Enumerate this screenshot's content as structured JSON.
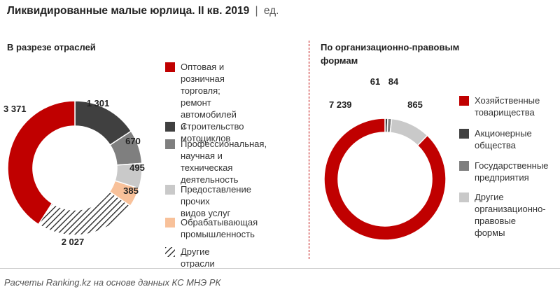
{
  "header": {
    "title": "Ликвидированные малые юрлица. II кв. 2019",
    "separator": "|",
    "unit": "ед."
  },
  "colors": {
    "red": "#c00000",
    "dark_gray": "#404040",
    "mid_gray": "#7f7f7f",
    "light_gray": "#c9c9c9",
    "orange": "#f8c19a",
    "divider": "#c00000"
  },
  "chart_data": [
    {
      "type": "pie",
      "variant": "donut",
      "title": "В разрезе отраслей",
      "categories": [
        "Оптовая и розничная торговля; ремонт автомобилей и мотоциклов",
        "Строительство",
        "Профессиональная, научная и техническая деятельность",
        "Предоставление прочих видов услуг",
        "Обрабатывающая промышленность",
        "Другие отрасли"
      ],
      "legend_lines": [
        [
          "Оптовая и розничная",
          "торговля; ремонт",
          "автомобилей и",
          "мотоциклов"
        ],
        [
          "Строительство"
        ],
        [
          "Профессиональная,",
          "научная и техническая",
          "деятельность"
        ],
        [
          "Предоставление прочих",
          "видов услуг"
        ],
        [
          "Обрабатывающая",
          "промышленность"
        ],
        [
          "Другие отрасли"
        ]
      ],
      "values": [
        3371,
        1301,
        670,
        495,
        385,
        2027
      ],
      "labels": [
        "3 371",
        "1 301",
        "670",
        "495",
        "385",
        "2 027"
      ],
      "fills": [
        "#c00000",
        "#404040",
        "#7f7f7f",
        "#c9c9c9",
        "#f8c19a",
        "hatch"
      ],
      "slice_order": [
        1,
        2,
        3,
        4,
        5,
        0
      ],
      "legend_position": "right"
    },
    {
      "type": "pie",
      "variant": "donut",
      "title": "По организационно-правовым формам",
      "categories": [
        "Хозяйственные товарищества",
        "Акционерные общества",
        "Государственные предприятия",
        "Другие организационно-правовые формы"
      ],
      "legend_lines": [
        [
          "Хозяйственные",
          "товарищества"
        ],
        [
          "Акционерные",
          "общества"
        ],
        [
          "Государственные",
          "предприятия"
        ],
        [
          "Другие",
          "организационно-",
          "правовые формы"
        ]
      ],
      "values": [
        7239,
        61,
        84,
        865
      ],
      "labels": [
        "7 239",
        "61",
        "84",
        "865"
      ],
      "fills": [
        "#c00000",
        "#404040",
        "#7f7f7f",
        "#c9c9c9"
      ],
      "slice_order": [
        1,
        2,
        3,
        0
      ],
      "legend_position": "right"
    }
  ],
  "footer": {
    "source": "Расчеты Ranking.kz на основе данных КС МНЭ РК"
  }
}
